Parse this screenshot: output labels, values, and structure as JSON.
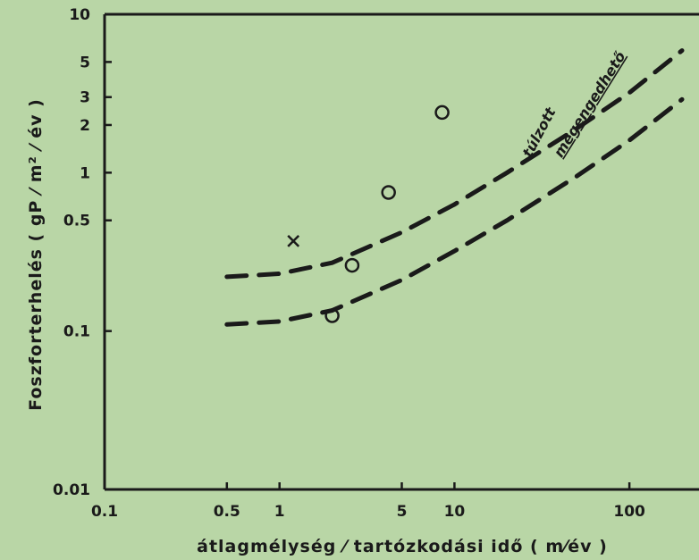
{
  "chart_data": {
    "type": "scatter",
    "xlabel": "átlagmélység ⁄ tartózkodási idő ( m⁄év )",
    "ylabel": "Foszforterhelés ( gP ⁄ m² ⁄ év )",
    "x_scale": "log",
    "y_scale": "log",
    "xlim": [
      0.1,
      250
    ],
    "ylim": [
      0.01,
      10
    ],
    "x_ticks": [
      {
        "value": 0.1,
        "label": "0.1"
      },
      {
        "value": 0.5,
        "label": "0.5"
      },
      {
        "value": 1,
        "label": "1"
      },
      {
        "value": 5,
        "label": "5"
      },
      {
        "value": 10,
        "label": "10"
      },
      {
        "value": 100,
        "label": "100"
      }
    ],
    "y_ticks": [
      {
        "value": 0.01,
        "label": "0.01"
      },
      {
        "value": 0.1,
        "label": "0.1"
      },
      {
        "value": 0.5,
        "label": "0.5"
      },
      {
        "value": 1,
        "label": "1"
      },
      {
        "value": 2,
        "label": "2"
      },
      {
        "value": 3,
        "label": "3"
      },
      {
        "value": 5,
        "label": "5"
      },
      {
        "value": 10,
        "label": "10"
      }
    ],
    "grid": false,
    "series": [
      {
        "name": "túlzott",
        "style": "dashed-line",
        "x": [
          0.5,
          1,
          2,
          5,
          10,
          20,
          50,
          100,
          200
        ],
        "y": [
          0.22,
          0.23,
          0.27,
          0.42,
          0.63,
          1.0,
          1.9,
          3.2,
          5.9
        ]
      },
      {
        "name": "megengedhető",
        "style": "dashed-line",
        "x": [
          0.5,
          1,
          2,
          5,
          10,
          20,
          50,
          100,
          200
        ],
        "y": [
          0.11,
          0.115,
          0.135,
          0.21,
          0.32,
          0.5,
          0.95,
          1.6,
          2.9
        ]
      },
      {
        "name": "",
        "style": "open-circle",
        "x": [
          2,
          2.6,
          4.2,
          8.5
        ],
        "y": [
          0.125,
          0.26,
          0.75,
          2.4
        ]
      },
      {
        "name": "",
        "style": "cross",
        "x": [
          1.2
        ],
        "y": [
          0.37
        ]
      }
    ],
    "annotations": [
      {
        "text": "túlzott",
        "series": "túlzott"
      },
      {
        "text": "megengedhető",
        "series": "megengedhető"
      }
    ],
    "colors": {
      "background": "#b9d6a6",
      "ink": "#1a1a1a"
    }
  }
}
